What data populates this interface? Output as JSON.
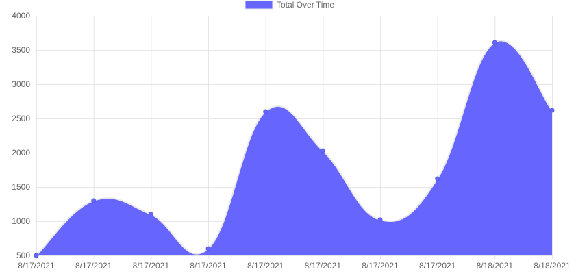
{
  "chart_data": {
    "type": "area",
    "categories": [
      "8/17/2021",
      "8/17/2021",
      "8/17/2021",
      "8/17/2021",
      "8/17/2021",
      "8/17/2021",
      "8/17/2021",
      "8/17/2021",
      "8/18/2021",
      "8/18/2021"
    ],
    "series": [
      {
        "name": "Total Over Time",
        "values": [
          500,
          1300,
          1100,
          600,
          2600,
          2030,
          1020,
          1620,
          3610,
          2620
        ],
        "fill": "#6666ff",
        "stroke": "#e8e8e8"
      }
    ],
    "title": "",
    "xlabel": "",
    "ylabel": "",
    "ylim": [
      500,
      4000
    ],
    "yticks": [
      500,
      1000,
      1500,
      2000,
      2500,
      3000,
      3500,
      4000
    ],
    "grid": true,
    "legend_position": "top"
  }
}
